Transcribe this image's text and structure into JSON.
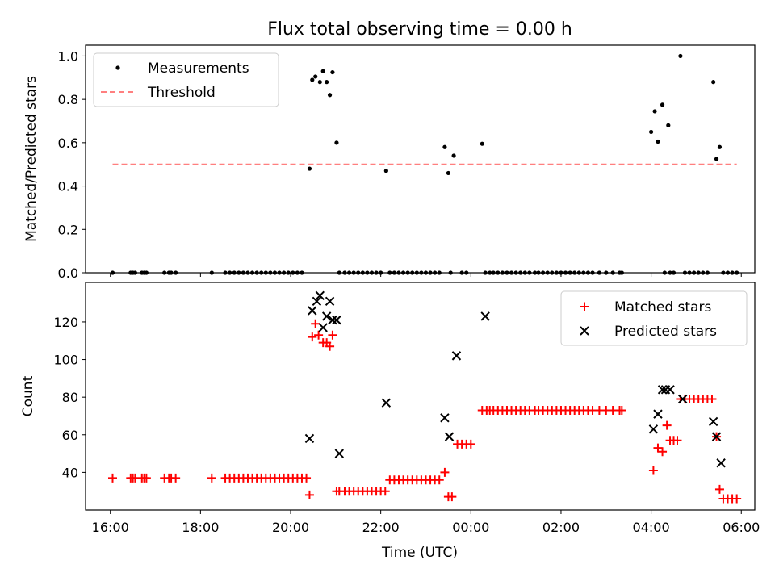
{
  "figure": {
    "title": "Flux total observing time = 0.00 h"
  },
  "colors": {
    "measurements": "#000000",
    "threshold": "#ff7f7f",
    "matched": "#ff0000",
    "predicted": "#000000"
  },
  "chart_data": [
    {
      "type": "scatter",
      "title": "Flux total observing time = 0.00 h",
      "xlabel": "",
      "ylabel": "Matched/Predicted stars",
      "xlim_hours": [
        15.45,
        30.3
      ],
      "ylim": [
        0,
        1.05
      ],
      "yticks": [
        0.0,
        0.2,
        0.4,
        0.6,
        0.8,
        1.0
      ],
      "ytick_labels": [
        "0.0",
        "0.2",
        "0.4",
        "0.6",
        "0.8",
        "1.0"
      ],
      "legend": "top-left",
      "series": [
        {
          "name": "Measurements",
          "marker": "dot",
          "x_hours": [
            16.05,
            16.45,
            16.5,
            16.55,
            16.7,
            16.75,
            16.8,
            17.2,
            17.3,
            17.35,
            17.45,
            18.25,
            18.55,
            18.65,
            18.75,
            18.85,
            18.95,
            19.05,
            19.15,
            19.25,
            19.35,
            19.45,
            19.55,
            19.65,
            19.75,
            19.85,
            19.95,
            20.05,
            20.15,
            20.25,
            20.42,
            20.48,
            20.55,
            20.65,
            20.72,
            20.8,
            20.87,
            20.93,
            21.02,
            21.08,
            21.2,
            21.3,
            21.4,
            21.5,
            21.6,
            21.7,
            21.8,
            21.9,
            22.0,
            22.12,
            22.2,
            22.3,
            22.4,
            22.5,
            22.6,
            22.7,
            22.8,
            22.9,
            23.0,
            23.1,
            23.2,
            23.3,
            23.42,
            23.5,
            23.55,
            23.62,
            23.8,
            23.9,
            24.25,
            24.32,
            24.42,
            24.5,
            24.6,
            24.7,
            24.8,
            24.9,
            25.0,
            25.1,
            25.2,
            25.3,
            25.42,
            25.5,
            25.6,
            25.7,
            25.8,
            25.9,
            26.0,
            26.1,
            26.2,
            26.3,
            26.4,
            26.5,
            26.6,
            26.7,
            26.85,
            27.0,
            27.15,
            27.3,
            27.35,
            28.0,
            28.08,
            28.15,
            28.25,
            28.3,
            28.38,
            28.42,
            28.5,
            28.65,
            28.75,
            28.85,
            28.95,
            29.05,
            29.15,
            29.25,
            29.38,
            29.45,
            29.52,
            29.6,
            29.7,
            29.8,
            29.9
          ],
          "y": [
            0,
            0,
            0,
            0,
            0,
            0,
            0,
            0,
            0,
            0,
            0,
            0,
            0,
            0,
            0,
            0,
            0,
            0,
            0,
            0,
            0,
            0,
            0,
            0,
            0,
            0,
            0,
            0,
            0,
            0,
            0.48,
            0.89,
            0.905,
            0.88,
            0.93,
            0.88,
            0.82,
            0.925,
            0.6,
            0,
            0,
            0,
            0,
            0,
            0,
            0,
            0,
            0,
            0,
            0.47,
            0,
            0,
            0,
            0,
            0,
            0,
            0,
            0,
            0,
            0,
            0,
            0,
            0.58,
            0.46,
            0,
            0.54,
            0,
            0,
            0.595,
            0,
            0,
            0,
            0,
            0,
            0,
            0,
            0,
            0,
            0,
            0,
            0,
            0,
            0,
            0,
            0,
            0,
            0,
            0,
            0,
            0,
            0,
            0,
            0,
            0,
            0,
            0,
            0,
            0,
            0,
            0.65,
            0.745,
            0.605,
            0.775,
            0,
            0.68,
            0,
            0,
            1.0,
            0,
            0,
            0,
            0,
            0,
            0,
            0.88,
            0.525,
            0.58,
            0,
            0,
            0,
            0
          ]
        },
        {
          "name": "Threshold",
          "style": "dashed",
          "x_hours": [
            16.05,
            29.9
          ],
          "y": [
            0.5,
            0.5
          ]
        }
      ]
    },
    {
      "type": "scatter",
      "title": "",
      "xlabel": "Time (UTC)",
      "ylabel": "Count",
      "xlim_hours": [
        15.45,
        30.3
      ],
      "ylim": [
        20,
        141
      ],
      "xticks_hours": [
        16,
        18,
        20,
        22,
        24,
        26,
        28,
        30
      ],
      "xtick_labels": [
        "16:00",
        "18:00",
        "20:00",
        "22:00",
        "00:00",
        "02:00",
        "04:00",
        "06:00"
      ],
      "yticks": [
        40,
        60,
        80,
        100,
        120
      ],
      "ytick_labels": [
        "40",
        "60",
        "80",
        "100",
        "120"
      ],
      "legend": "top-right",
      "series": [
        {
          "name": "Matched stars",
          "marker": "plus",
          "x_hours": [
            16.05,
            16.45,
            16.5,
            16.55,
            16.7,
            16.75,
            16.8,
            17.2,
            17.3,
            17.35,
            17.45,
            18.25,
            18.55,
            18.65,
            18.75,
            18.85,
            18.95,
            19.05,
            19.15,
            19.25,
            19.35,
            19.45,
            19.55,
            19.65,
            19.75,
            19.85,
            19.95,
            20.05,
            20.15,
            20.25,
            20.35,
            20.42,
            20.48,
            20.55,
            20.62,
            20.72,
            20.8,
            20.87,
            20.93,
            21.02,
            21.08,
            21.2,
            21.3,
            21.4,
            21.5,
            21.6,
            21.7,
            21.8,
            21.9,
            22.0,
            22.1,
            22.2,
            22.3,
            22.4,
            22.5,
            22.6,
            22.7,
            22.8,
            22.9,
            23.0,
            23.1,
            23.2,
            23.3,
            23.42,
            23.5,
            23.58,
            23.7,
            23.8,
            23.9,
            24.0,
            24.25,
            24.35,
            24.42,
            24.5,
            24.6,
            24.7,
            24.8,
            24.9,
            25.0,
            25.1,
            25.2,
            25.3,
            25.42,
            25.5,
            25.6,
            25.7,
            25.8,
            25.9,
            26.0,
            26.1,
            26.2,
            26.3,
            26.4,
            26.5,
            26.6,
            26.7,
            26.85,
            27.0,
            27.15,
            27.3,
            27.35,
            28.05,
            28.15,
            28.25,
            28.35,
            28.42,
            28.5,
            28.58,
            28.65,
            28.75,
            28.85,
            28.95,
            29.05,
            29.15,
            29.25,
            29.35,
            29.45,
            29.52,
            29.6,
            29.7,
            29.8,
            29.9
          ],
          "y": [
            37,
            37,
            37,
            37,
            37,
            37,
            37,
            37,
            37,
            37,
            37,
            37,
            37,
            37,
            37,
            37,
            37,
            37,
            37,
            37,
            37,
            37,
            37,
            37,
            37,
            37,
            37,
            37,
            37,
            37,
            37,
            28,
            112,
            119,
            113,
            109,
            109,
            107,
            113,
            30,
            30,
            30,
            30,
            30,
            30,
            30,
            30,
            30,
            30,
            30,
            30,
            36,
            36,
            36,
            36,
            36,
            36,
            36,
            36,
            36,
            36,
            36,
            36,
            40,
            27,
            27,
            55,
            55,
            55,
            55,
            73,
            73,
            73,
            73,
            73,
            73,
            73,
            73,
            73,
            73,
            73,
            73,
            73,
            73,
            73,
            73,
            73,
            73,
            73,
            73,
            73,
            73,
            73,
            73,
            73,
            73,
            73,
            73,
            73,
            73,
            73,
            41,
            53,
            51,
            65,
            57,
            57,
            57,
            79,
            79,
            79,
            79,
            79,
            79,
            79,
            79,
            59,
            31,
            26,
            26,
            26,
            26
          ]
        },
        {
          "name": "Predicted stars",
          "marker": "x",
          "x_hours": [
            20.42,
            20.48,
            20.58,
            20.65,
            20.72,
            20.8,
            20.87,
            20.93,
            21.02,
            21.08,
            22.12,
            23.42,
            23.52,
            23.68,
            24.32,
            28.05,
            28.15,
            28.25,
            28.32,
            28.42,
            28.7,
            29.38,
            29.45,
            29.55
          ],
          "y": [
            58,
            126,
            131,
            134,
            117,
            123,
            131,
            121,
            121,
            50,
            77,
            69,
            59,
            102,
            123,
            63,
            71,
            84,
            84,
            84,
            79,
            67,
            59,
            45
          ]
        }
      ]
    }
  ]
}
